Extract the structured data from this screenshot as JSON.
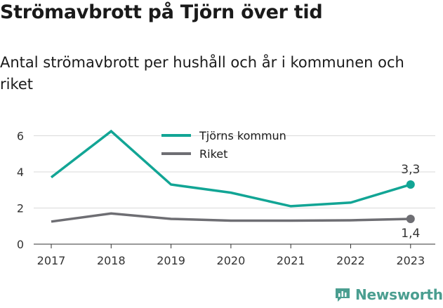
{
  "title": "Strömavbrott på Tjörn över tid",
  "subtitle": "Antal strömavbrott per hushåll och år i kommunen och riket",
  "brand": "Newsworthy",
  "chart_data": {
    "type": "line",
    "title": "Strömavbrott på Tjörn över tid",
    "subtitle": "Antal strömavbrott per hushåll och år i kommunen och riket",
    "xlabel": "",
    "ylabel": "",
    "x": [
      "2017",
      "2018",
      "2019",
      "2020",
      "2021",
      "2022",
      "2023"
    ],
    "yticks": [
      "0",
      "2",
      "4",
      "6"
    ],
    "ylim": [
      0,
      6.7
    ],
    "grid": true,
    "legend": "top-center",
    "series": [
      {
        "name": "Tjörns kommun",
        "color": "#12a595",
        "values": [
          3.7,
          6.25,
          3.3,
          2.85,
          2.1,
          2.3,
          3.3
        ],
        "end_label": "3,3"
      },
      {
        "name": "Riket",
        "color": "#6e6e73",
        "values": [
          1.25,
          1.7,
          1.4,
          1.3,
          1.3,
          1.32,
          1.4
        ],
        "end_label": "1,4"
      }
    ]
  }
}
